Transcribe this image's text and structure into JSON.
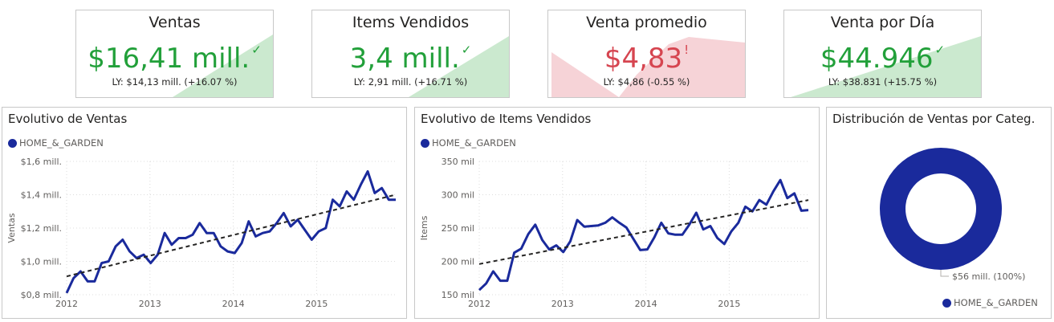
{
  "colors": {
    "series": "#1a2a9c",
    "good": "#22a03a",
    "bad": "#d64550",
    "good_fill": "#cbe9cf",
    "bad_fill": "#f6d3d7"
  },
  "kpis": [
    {
      "title": "Ventas",
      "value": "$16,41 mill.",
      "mark": "✓",
      "status": "good",
      "ly": "LY: $14,13 mill. (+16.07 %)"
    },
    {
      "title": "Items Vendidos",
      "value": "3,4 mill.",
      "mark": "✓",
      "status": "good",
      "ly": "LY: 2,91 mill. (+16.71 %)"
    },
    {
      "title": "Venta promedio",
      "value": "$4,83",
      "mark": "!",
      "status": "bad",
      "ly": "LY: $4,86 (-0.55 %)"
    },
    {
      "title": "Venta por Día",
      "value": "$44.946",
      "mark": "✓",
      "status": "good",
      "ly": "LY: $38.831 (+15.75 %)"
    }
  ],
  "sales_chart": {
    "title": "Evolutivo de Ventas",
    "legend": "HOME_&_GARDEN",
    "chart_data": {
      "type": "line",
      "title": "Evolutivo de Ventas",
      "ylabel": "Ventas",
      "ylim": [
        0.8,
        1.6
      ],
      "yticks": [
        0.8,
        1.0,
        1.2,
        1.4,
        1.6
      ],
      "ytick_labels": [
        "$0,8 mill.",
        "$1,0 mill.",
        "$1,2 mill.",
        "$1,4 mill.",
        "$1,6 mill."
      ],
      "xlim": [
        2012,
        2015.95
      ],
      "xticks": [
        2012,
        2013,
        2014,
        2015
      ],
      "xtick_labels": [
        "2012",
        "2013",
        "2014",
        "2015"
      ],
      "grid": true,
      "legend_position": "top-left",
      "series": [
        {
          "name": "HOME_&_GARDEN",
          "values": [
            0.81,
            0.9,
            0.94,
            0.88,
            0.88,
            0.99,
            1.0,
            1.09,
            1.13,
            1.06,
            1.02,
            1.04,
            0.99,
            1.04,
            1.17,
            1.1,
            1.14,
            1.14,
            1.16,
            1.23,
            1.17,
            1.17,
            1.09,
            1.06,
            1.05,
            1.11,
            1.24,
            1.15,
            1.17,
            1.18,
            1.23,
            1.29,
            1.21,
            1.25,
            1.19,
            1.13,
            1.18,
            1.2,
            1.37,
            1.33,
            1.42,
            1.37,
            1.46,
            1.54,
            1.41,
            1.44,
            1.37,
            1.37
          ]
        }
      ],
      "trend": {
        "start": 0.91,
        "end": 1.4,
        "style": "dashed"
      }
    }
  },
  "items_chart": {
    "title": "Evolutivo de Items Vendidos",
    "legend": "HOME_&_GARDEN",
    "chart_data": {
      "type": "line",
      "title": "Evolutivo de Items Vendidos",
      "ylabel": "Items",
      "ylim": [
        150,
        350
      ],
      "yticks": [
        150,
        200,
        250,
        300,
        350
      ],
      "ytick_labels": [
        "150 mil",
        "200 mil",
        "250 mil",
        "300 mil",
        "350 mil"
      ],
      "xlim": [
        2012,
        2015.95
      ],
      "xticks": [
        2012,
        2013,
        2014,
        2015
      ],
      "xtick_labels": [
        "2012",
        "2013",
        "2014",
        "2015"
      ],
      "grid": true,
      "legend_position": "top-left",
      "series": [
        {
          "name": "HOME_&_GARDEN",
          "values": [
            157,
            167,
            185,
            171,
            171,
            213,
            219,
            241,
            255,
            232,
            218,
            224,
            214,
            230,
            262,
            252,
            253,
            254,
            258,
            266,
            258,
            251,
            234,
            217,
            218,
            236,
            258,
            242,
            240,
            240,
            255,
            273,
            248,
            253,
            235,
            226,
            245,
            258,
            282,
            275,
            292,
            285,
            305,
            322,
            295,
            302,
            276,
            277
          ]
        }
      ],
      "trend": {
        "start": 196,
        "end": 292,
        "style": "dashed"
      }
    }
  },
  "donut": {
    "title": "Distribución de Ventas por Categ.",
    "label": "$56 mill. (100%)",
    "legend": "HOME_&_GARDEN",
    "chart_data": {
      "type": "pie",
      "title": "Distribución de Ventas por Categ.",
      "slices": [
        {
          "name": "HOME_&_GARDEN",
          "value": 56,
          "percent": 100
        }
      ]
    }
  }
}
